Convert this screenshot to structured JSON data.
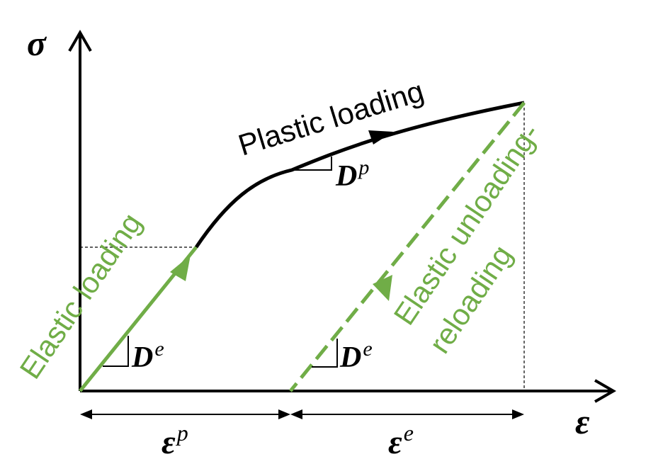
{
  "axes": {
    "y_symbol": "σ",
    "x_symbol": "ε"
  },
  "labels": {
    "plastic_loading": "Plastic loading",
    "elastic_loading": "Elastic loading",
    "elastic_unloading_line1": "Elastic unloading-",
    "elastic_unloading_line2": "reloading"
  },
  "moduli": {
    "plastic": {
      "base": "D",
      "sup": "p"
    },
    "elastic_loading": {
      "base": "D",
      "sup": "e"
    },
    "elastic_unloading": {
      "base": "D",
      "sup": "e"
    }
  },
  "strains": {
    "plastic": {
      "base": "ε",
      "sup": "p"
    },
    "elastic": {
      "base": "ε",
      "sup": "e"
    }
  },
  "colors": {
    "black": "#000000",
    "green": "#70AD47"
  }
}
